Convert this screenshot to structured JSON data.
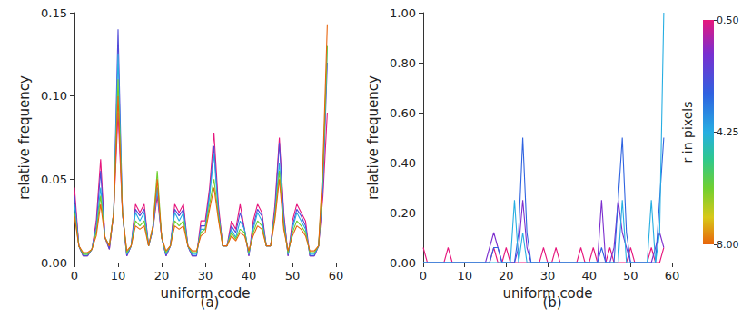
{
  "chart_data": [
    {
      "type": "line",
      "label": "(a)",
      "xlabel": "uniform code",
      "ylabel": "relative frequency",
      "grid": false,
      "x": [
        0,
        1,
        2,
        3,
        4,
        5,
        6,
        7,
        8,
        9,
        10,
        11,
        12,
        13,
        14,
        15,
        16,
        17,
        18,
        19,
        20,
        21,
        22,
        23,
        24,
        25,
        26,
        27,
        28,
        29,
        30,
        31,
        32,
        33,
        34,
        35,
        36,
        37,
        38,
        39,
        40,
        41,
        42,
        43,
        44,
        45,
        46,
        47,
        48,
        49,
        50,
        51,
        52,
        53,
        54,
        55,
        56,
        57,
        58
      ],
      "xlim": [
        0,
        60
      ],
      "xticks": [
        0,
        10,
        20,
        30,
        40,
        50,
        60
      ],
      "ylim": [
        0,
        0.15
      ],
      "yticks": [
        {
          "value": 0,
          "label": "0.00"
        },
        {
          "value": 0.05,
          "label": "0.05"
        },
        {
          "value": 0.1,
          "label": "0.10"
        },
        {
          "value": 0.15,
          "label": "0.15"
        }
      ],
      "series": [
        {
          "r": 0.5,
          "values": [
            0.045,
            0.01,
            0.004,
            0.004,
            0.008,
            0.025,
            0.062,
            0.015,
            0.008,
            0.03,
            0.09,
            0.03,
            0.004,
            0.01,
            0.035,
            0.03,
            0.035,
            0.01,
            0.02,
            0.04,
            0.015,
            0.004,
            0.01,
            0.035,
            0.03,
            0.035,
            0.01,
            0.004,
            0.004,
            0.025,
            0.025,
            0.045,
            0.078,
            0.035,
            0.01,
            0.01,
            0.025,
            0.02,
            0.035,
            0.02,
            0.004,
            0.025,
            0.035,
            0.03,
            0.01,
            0.01,
            0.035,
            0.075,
            0.03,
            0.004,
            0.025,
            0.035,
            0.03,
            0.025,
            0.004,
            0.004,
            0.01,
            0.04,
            0.09
          ]
        },
        {
          "r": 2.375,
          "values": [
            0.04,
            0.01,
            0.004,
            0.004,
            0.008,
            0.022,
            0.055,
            0.015,
            0.008,
            0.03,
            0.14,
            0.03,
            0.004,
            0.01,
            0.032,
            0.028,
            0.032,
            0.01,
            0.02,
            0.045,
            0.015,
            0.004,
            0.01,
            0.032,
            0.028,
            0.032,
            0.01,
            0.004,
            0.004,
            0.022,
            0.022,
            0.042,
            0.07,
            0.032,
            0.01,
            0.01,
            0.022,
            0.018,
            0.03,
            0.02,
            0.004,
            0.022,
            0.032,
            0.028,
            0.01,
            0.01,
            0.032,
            0.072,
            0.028,
            0.004,
            0.022,
            0.032,
            0.028,
            0.022,
            0.004,
            0.004,
            0.01,
            0.045,
            0.12
          ]
        },
        {
          "r": 4.25,
          "values": [
            0.035,
            0.01,
            0.005,
            0.005,
            0.008,
            0.02,
            0.045,
            0.015,
            0.01,
            0.03,
            0.125,
            0.03,
            0.005,
            0.01,
            0.03,
            0.025,
            0.03,
            0.01,
            0.02,
            0.045,
            0.015,
            0.005,
            0.01,
            0.03,
            0.025,
            0.03,
            0.01,
            0.005,
            0.005,
            0.02,
            0.02,
            0.04,
            0.065,
            0.03,
            0.01,
            0.01,
            0.02,
            0.015,
            0.025,
            0.02,
            0.005,
            0.02,
            0.03,
            0.025,
            0.01,
            0.01,
            0.03,
            0.06,
            0.025,
            0.005,
            0.02,
            0.03,
            0.025,
            0.02,
            0.005,
            0.005,
            0.01,
            0.05,
            0.13
          ]
        },
        {
          "r": 6.125,
          "values": [
            0.03,
            0.01,
            0.005,
            0.005,
            0.008,
            0.018,
            0.04,
            0.015,
            0.01,
            0.03,
            0.11,
            0.03,
            0.006,
            0.01,
            0.025,
            0.022,
            0.025,
            0.01,
            0.022,
            0.055,
            0.015,
            0.006,
            0.01,
            0.025,
            0.022,
            0.025,
            0.01,
            0.006,
            0.006,
            0.018,
            0.02,
            0.035,
            0.05,
            0.028,
            0.01,
            0.01,
            0.018,
            0.014,
            0.02,
            0.018,
            0.006,
            0.018,
            0.025,
            0.022,
            0.01,
            0.01,
            0.028,
            0.055,
            0.022,
            0.006,
            0.018,
            0.025,
            0.022,
            0.018,
            0.006,
            0.006,
            0.01,
            0.055,
            0.13
          ]
        },
        {
          "r": 8,
          "values": [
            0.028,
            0.01,
            0.006,
            0.006,
            0.008,
            0.016,
            0.035,
            0.015,
            0.01,
            0.03,
            0.1,
            0.03,
            0.007,
            0.01,
            0.022,
            0.02,
            0.022,
            0.01,
            0.022,
            0.05,
            0.015,
            0.007,
            0.01,
            0.022,
            0.02,
            0.022,
            0.01,
            0.007,
            0.007,
            0.016,
            0.018,
            0.032,
            0.045,
            0.026,
            0.01,
            0.01,
            0.016,
            0.013,
            0.018,
            0.016,
            0.007,
            0.016,
            0.022,
            0.02,
            0.01,
            0.01,
            0.026,
            0.05,
            0.02,
            0.007,
            0.016,
            0.022,
            0.02,
            0.016,
            0.007,
            0.007,
            0.01,
            0.06,
            0.143
          ]
        }
      ]
    },
    {
      "type": "line",
      "label": "(b)",
      "xlabel": "uniform code",
      "ylabel": "relative frequency",
      "grid": false,
      "x": [
        0,
        1,
        2,
        3,
        4,
        5,
        6,
        7,
        8,
        9,
        10,
        11,
        12,
        13,
        14,
        15,
        16,
        17,
        18,
        19,
        20,
        21,
        22,
        23,
        24,
        25,
        26,
        27,
        28,
        29,
        30,
        31,
        32,
        33,
        34,
        35,
        36,
        37,
        38,
        39,
        40,
        41,
        42,
        43,
        44,
        45,
        46,
        47,
        48,
        49,
        50,
        51,
        52,
        53,
        54,
        55,
        56,
        57,
        58
      ],
      "xlim": [
        0,
        60
      ],
      "xticks": [
        0,
        10,
        20,
        30,
        40,
        50,
        60
      ],
      "ylim": [
        0,
        1
      ],
      "yticks": [
        {
          "value": 0,
          "label": "0.00"
        },
        {
          "value": 0.2,
          "label": "0.20"
        },
        {
          "value": 0.4,
          "label": "0.40"
        },
        {
          "value": 0.6,
          "label": "0.60"
        },
        {
          "value": 0.8,
          "label": "0.80"
        },
        {
          "value": 1,
          "label": "1.00"
        }
      ],
      "series": [
        {
          "r": 0.5,
          "values": [
            0.06,
            0,
            0,
            0,
            0,
            0,
            0.06,
            0,
            0,
            0,
            0,
            0,
            0,
            0,
            0,
            0,
            0,
            0.06,
            0,
            0,
            0.06,
            0,
            0,
            0,
            0,
            0,
            0,
            0,
            0,
            0.06,
            0,
            0,
            0.06,
            0,
            0,
            0,
            0,
            0,
            0.06,
            0,
            0,
            0.06,
            0,
            0,
            0,
            0.06,
            0,
            0,
            0,
            0,
            0.06,
            0,
            0,
            0,
            0,
            0.06,
            0,
            0,
            0.06
          ]
        },
        {
          "r": 1.6,
          "values": [
            0,
            0,
            0,
            0,
            0,
            0,
            0,
            0,
            0,
            0,
            0,
            0,
            0,
            0,
            0,
            0,
            0.06,
            0.12,
            0.06,
            0,
            0,
            0,
            0,
            0.06,
            0.25,
            0.06,
            0,
            0,
            0,
            0,
            0,
            0,
            0,
            0,
            0,
            0,
            0,
            0,
            0,
            0,
            0,
            0,
            0,
            0.25,
            0,
            0,
            0.06,
            0.25,
            0.12,
            0.06,
            0,
            0,
            0,
            0,
            0,
            0,
            0.06,
            0.12,
            0.06
          ]
        },
        {
          "r": 3,
          "values": [
            0,
            0,
            0,
            0,
            0,
            0,
            0,
            0,
            0,
            0,
            0,
            0,
            0,
            0,
            0,
            0,
            0,
            0.06,
            0.06,
            0,
            0,
            0,
            0,
            0.12,
            0.5,
            0.12,
            0,
            0,
            0,
            0,
            0,
            0,
            0,
            0,
            0,
            0,
            0,
            0,
            0,
            0,
            0,
            0,
            0,
            0.06,
            0,
            0,
            0,
            0.25,
            0.5,
            0.12,
            0,
            0,
            0,
            0,
            0,
            0,
            0,
            0.25,
            0.5
          ]
        },
        {
          "r": 4.25,
          "values": [
            0,
            0,
            0,
            0,
            0,
            0,
            0,
            0,
            0,
            0,
            0,
            0,
            0,
            0,
            0,
            0,
            0,
            0,
            0,
            0,
            0,
            0,
            0.25,
            0,
            0.12,
            0,
            0,
            0,
            0,
            0,
            0,
            0,
            0,
            0,
            0,
            0,
            0,
            0,
            0,
            0,
            0,
            0,
            0,
            0,
            0,
            0,
            0,
            0,
            0.25,
            0,
            0,
            0,
            0,
            0,
            0,
            0.25,
            0,
            0.12,
            1
          ]
        }
      ]
    }
  ],
  "colorbar": {
    "title": "r in pixels",
    "range": [
      0.5,
      8
    ],
    "ticks": [
      {
        "value": 0.5,
        "label": "0.50"
      },
      4.25,
      {
        "value": 8,
        "label": "8.00"
      }
    ]
  }
}
